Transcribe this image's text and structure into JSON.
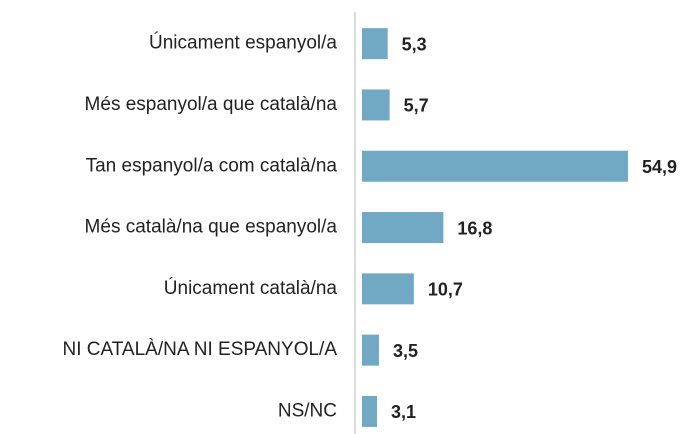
{
  "chart_data": {
    "type": "bar",
    "orientation": "horizontal",
    "categories": [
      "Únicament espanyol/a",
      "Més espanyol/a que català/na",
      "Tan espanyol/a com català/na",
      "Més català/na que espanyol/a",
      "Únicament català/na",
      "NI CATALÀ/NA NI ESPANYOL/A",
      "NS/NC"
    ],
    "values": [
      5.3,
      5.7,
      54.9,
      16.8,
      10.7,
      3.5,
      3.1
    ],
    "value_labels": [
      "5,3",
      "5,7",
      "54,9",
      "16,8",
      "10,7",
      "3,5",
      "3,1"
    ],
    "color": "#71a9c5"
  }
}
